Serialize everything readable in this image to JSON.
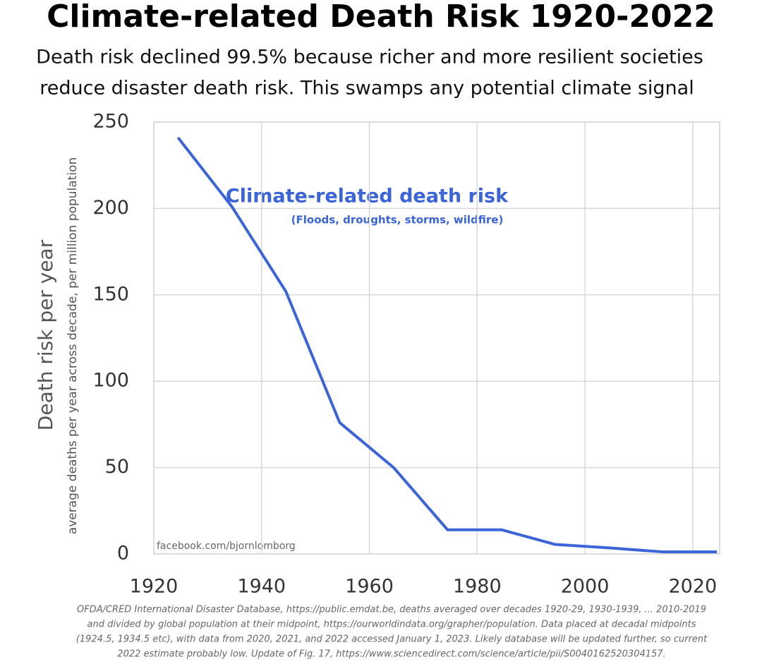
{
  "chart_data": {
    "type": "line",
    "title": "Climate-related Death Risk 1920-2022",
    "subtitle": [
      "Death risk declined 99.5% because richer and more resilient societies",
      "reduce disaster death risk. This swamps any potential climate signal"
    ],
    "y_label": "Death risk per year",
    "y_sublabel": "average deaths per year across decade, per million population",
    "annotations": [
      "Climate-related death risk",
      "(Floods, droughts, storms, wildfire)"
    ],
    "watermark": "facebook.com/bjornlomborg",
    "footnote": [
      "OFDA/CRED International Disaster Database, https://public.emdat.be, deaths averaged over decades 1920-29, 1930-1939, ... 2010-2019",
      "and divided by global population at their midpoint, https://ourworldindata.org/grapher/population. Data placed at decadal midpoints",
      "(1924.5, 1934.5 etc), with data from 2020, 2021, and 2022 accessed January 1, 2023. Likely database will be updated further, so current",
      "2022 estimate probably low. Update of Fig. 17, https://www.sciencedirect.com/science/article/pii/S0040162520304157."
    ],
    "x": [
      1924.5,
      1934.5,
      1944.5,
      1954.5,
      1964.5,
      1974.5,
      1984.5,
      1994.5,
      2004.5,
      2014.5,
      2024.5
    ],
    "series": [
      {
        "name": "Climate-related death risk",
        "color": "#3a64d8",
        "values": [
          241,
          201,
          152,
          76,
          50,
          14,
          14,
          5.5,
          3.5,
          1.2,
          1.2
        ]
      }
    ],
    "xlim": [
      1920,
      2025
    ],
    "xticks": [
      1920,
      1940,
      1960,
      1980,
      2000,
      2020
    ],
    "ylim": [
      0,
      250
    ],
    "yticks": [
      0,
      50,
      100,
      150,
      200,
      250
    ],
    "grid": true
  }
}
